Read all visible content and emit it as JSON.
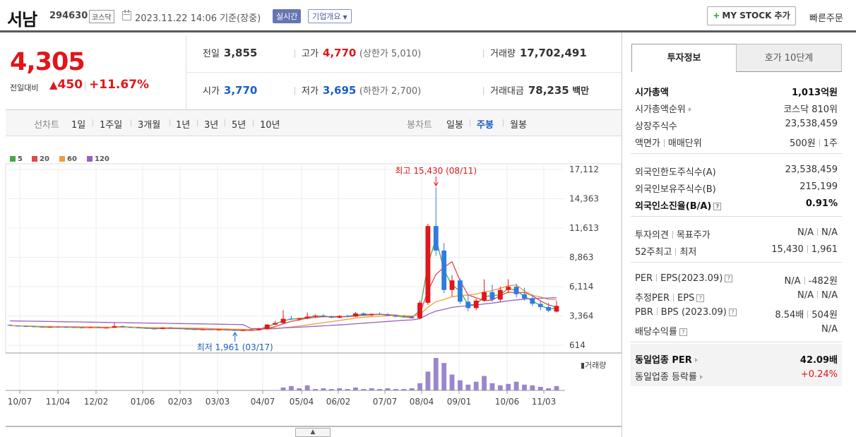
{
  "header": {
    "name": "서남",
    "code": "294630",
    "market": "코스닥",
    "date": "2023.11.22 14:06 기준(장중)",
    "realtime_label": "실시간",
    "company_label": "기업개요",
    "mystock_label": "MY STOCK 추가",
    "quick_order": "빠른주문"
  },
  "price": {
    "current": "4,305",
    "change_label": "전일대비",
    "change": "450",
    "change_pct": "+11.67%",
    "prev_close_label": "전일",
    "prev_close": "3,855",
    "open_label": "시가",
    "open": "3,770",
    "high_label": "고가",
    "high": "4,770",
    "upper_limit": "(상한가 5,010)",
    "low_label": "저가",
    "low": "3,695",
    "lower_limit": "(하한가 2,700)",
    "volume_label": "거래량",
    "volume": "17,702,491",
    "amount_label": "거래대금",
    "amount": "78,235",
    "amount_unit": "백만"
  },
  "tabs": {
    "line_label": "선차트",
    "line_items": [
      "1일",
      "1주일",
      "3개월",
      "1년",
      "3년",
      "5년",
      "10년"
    ],
    "candle_label": "봉차트",
    "candle_items": [
      "일봉",
      "주봉",
      "월봉"
    ],
    "candle_active": "주봉"
  },
  "colors": {
    "ma5": "#44aa44",
    "ma20": "#e84545",
    "ma60": "#f59a3a",
    "ma120": "#9b5fc0",
    "up": "#e1161b",
    "down": "#2f7be0",
    "volume": "#9d86c8"
  },
  "chart_data": {
    "type": "candlestick",
    "legend": [
      "5",
      "20",
      "60",
      "120"
    ],
    "y_ticks": [
      "17,112",
      "14,363",
      "11,613",
      "8,863",
      "6,114",
      "3,364",
      "614"
    ],
    "x_ticks": [
      "10/07",
      "11/04",
      "12/02",
      "01/06",
      "02/03",
      "03/03",
      "04/07",
      "05/04",
      "06/02",
      "07/07",
      "08/04",
      "09/01",
      "10/06",
      "11/03"
    ],
    "ylim": [
      614,
      17112
    ],
    "high_annotation": "최고 15,430 (08/11)",
    "low_annotation": "최저 1,961 (03/17)",
    "volume_label": "거래량",
    "candles": [
      [
        2520,
        2580,
        2480,
        2460
      ],
      [
        2440,
        2500,
        2380,
        2400
      ],
      [
        2400,
        2450,
        2350,
        2390
      ],
      [
        2380,
        2420,
        2320,
        2350
      ],
      [
        2350,
        2400,
        2280,
        2300
      ],
      [
        2300,
        2380,
        2250,
        2340
      ],
      [
        2340,
        2400,
        2300,
        2320
      ],
      [
        2320,
        2370,
        2280,
        2300
      ],
      [
        2300,
        2340,
        2250,
        2280
      ],
      [
        2280,
        2320,
        2230,
        2260
      ],
      [
        2260,
        2330,
        2220,
        2300
      ],
      [
        2300,
        2350,
        2220,
        2240
      ],
      [
        2240,
        2290,
        2200,
        2260
      ],
      [
        2260,
        2700,
        2230,
        2400
      ],
      [
        2400,
        2480,
        2300,
        2320
      ],
      [
        2320,
        2370,
        2250,
        2270
      ],
      [
        2270,
        2320,
        2200,
        2230
      ],
      [
        2230,
        2280,
        2150,
        2180
      ],
      [
        2180,
        2230,
        2100,
        2140
      ],
      [
        2140,
        2300,
        2120,
        2250
      ],
      [
        2250,
        2310,
        2180,
        2200
      ],
      [
        2200,
        2250,
        2130,
        2160
      ],
      [
        2160,
        2210,
        2090,
        2120
      ],
      [
        2120,
        2170,
        2050,
        2080
      ],
      [
        2080,
        2140,
        2030,
        2100
      ],
      [
        2100,
        2150,
        2040,
        2060
      ],
      [
        2060,
        2120,
        2000,
        2080
      ],
      [
        2080,
        2140,
        2020,
        2040
      ],
      [
        2040,
        2100,
        1961,
        2000
      ],
      [
        2000,
        2060,
        1990,
        2020
      ],
      [
        2020,
        2080,
        1990,
        2050
      ],
      [
        2050,
        2200,
        2000,
        2150
      ],
      [
        2150,
        2600,
        2100,
        2550
      ],
      [
        2550,
        2900,
        2500,
        2700
      ],
      [
        2700,
        3900,
        2650,
        3100
      ],
      [
        3100,
        3400,
        2950,
        3050
      ],
      [
        3050,
        3200,
        2900,
        3150
      ],
      [
        3150,
        3700,
        3050,
        3300
      ],
      [
        3300,
        3500,
        3200,
        3400
      ],
      [
        3400,
        3550,
        3250,
        3300
      ],
      [
        3300,
        3400,
        3150,
        3200
      ],
      [
        3200,
        3450,
        3150,
        3350
      ],
      [
        3350,
        3500,
        3250,
        3300
      ],
      [
        3300,
        3750,
        3250,
        3600
      ],
      [
        3600,
        3700,
        3400,
        3450
      ],
      [
        3450,
        3600,
        3350,
        3550
      ],
      [
        3550,
        3700,
        3450,
        3500
      ],
      [
        3500,
        3650,
        3350,
        3400
      ],
      [
        3400,
        3500,
        3250,
        3300
      ],
      [
        3300,
        3450,
        3200,
        3250
      ],
      [
        3250,
        3350,
        3100,
        3150
      ],
      [
        3150,
        4800,
        3100,
        4600
      ],
      [
        4600,
        12000,
        4400,
        11800
      ],
      [
        11800,
        15430,
        9000,
        9500
      ],
      [
        9500,
        10200,
        5500,
        5800
      ],
      [
        5800,
        7200,
        5200,
        6700
      ],
      [
        6700,
        6900,
        4500,
        4700
      ],
      [
        4700,
        5400,
        3800,
        4100
      ],
      [
        4100,
        5000,
        3900,
        4800
      ],
      [
        4800,
        6800,
        4700,
        5600
      ],
      [
        5600,
        6300,
        4700,
        4900
      ],
      [
        4900,
        6100,
        4700,
        5800
      ],
      [
        5800,
        6800,
        5500,
        6100
      ],
      [
        6100,
        6400,
        5100,
        5400
      ],
      [
        5400,
        6000,
        4800,
        5000
      ],
      [
        5000,
        5400,
        4300,
        4500
      ],
      [
        4500,
        4800,
        3900,
        4200
      ],
      [
        4200,
        4600,
        3700,
        3855
      ],
      [
        3770,
        4770,
        3695,
        4305
      ]
    ],
    "volume": [
      0,
      0,
      0,
      0,
      0,
      0,
      0,
      0,
      0,
      0,
      0,
      0,
      0,
      0,
      0,
      0,
      0,
      0,
      0,
      0,
      0,
      0,
      0,
      0,
      0,
      0,
      0,
      0,
      0,
      0,
      0,
      0,
      0,
      0,
      4,
      6,
      3,
      7,
      2,
      3,
      2,
      3,
      2,
      4,
      2,
      3,
      2,
      3,
      2,
      2,
      3,
      10,
      26,
      45,
      38,
      22,
      14,
      8,
      12,
      20,
      10,
      7,
      9,
      12,
      8,
      7,
      5,
      3,
      6
    ]
  },
  "info": {
    "tab1": "투자정보",
    "tab2": "호가 10단계",
    "rows": [
      {
        "k": "시가총액",
        "v": "1,013억원"
      },
      {
        "k": "시가총액순위",
        "v": "코스닥 810위"
      },
      {
        "k": "상장주식수",
        "v": "23,538,459"
      },
      {
        "k1": "액면가",
        "k2": "매매단위",
        "v1": "500원",
        "v2": "1주"
      },
      {
        "k": "외국인한도주식수(A)",
        "v": "23,538,459"
      },
      {
        "k": "외국인보유주식수(B)",
        "v": "215,199"
      },
      {
        "k": "외국인소진율(B/A)",
        "v": "0.91%"
      },
      {
        "k1": "투자의견",
        "k2": "목표주가",
        "v1": "N/A",
        "v2": "N/A"
      },
      {
        "k1": "52주최고",
        "k2": "최저",
        "v1": "15,430",
        "v2": "1,961"
      },
      {
        "k1": "PER",
        "k2": "EPS(2023.09)",
        "v1": "N/A",
        "v2": "-482원"
      },
      {
        "k1": "추정PER",
        "k2": "EPS",
        "v1": "N/A",
        "v2": "N/A"
      },
      {
        "k1": "PBR",
        "k2": "BPS (2023.09)",
        "v1": "8.54배",
        "v2": "504원"
      },
      {
        "k": "배당수익률",
        "v": "N/A"
      },
      {
        "k": "동일업종 PER",
        "v": "42.09배"
      },
      {
        "k": "동일업종 등락률",
        "v": "+0.24%"
      }
    ]
  }
}
